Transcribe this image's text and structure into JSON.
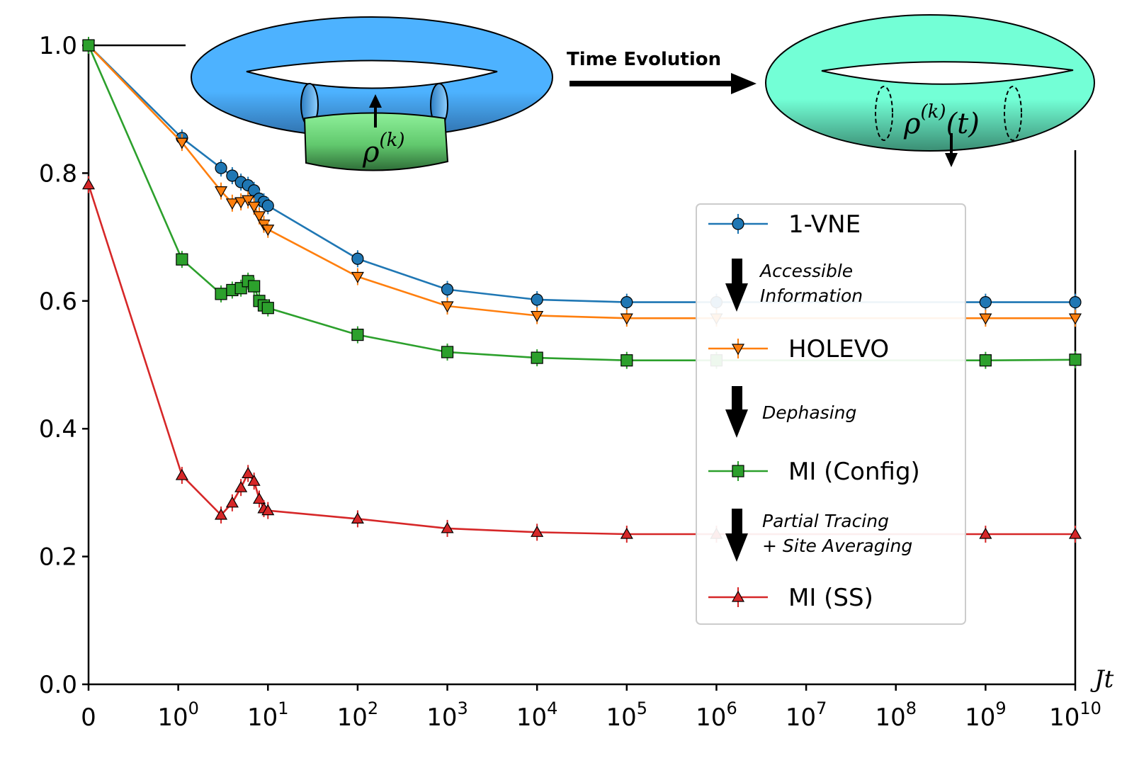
{
  "chart_data": {
    "type": "line",
    "xscale": "symlog",
    "xlim": [
      0,
      10000000000
    ],
    "ylim": [
      0,
      1.0
    ],
    "xlabel": "Jt",
    "ylabel": "",
    "grid": false,
    "legend_position": "center-right",
    "x_ticks": [
      {
        "value": 0,
        "base": "0",
        "exp": ""
      },
      {
        "value": 1,
        "base": "10",
        "exp": "0"
      },
      {
        "value": 10,
        "base": "10",
        "exp": "1"
      },
      {
        "value": 100,
        "base": "10",
        "exp": "2"
      },
      {
        "value": 1000,
        "base": "10",
        "exp": "3"
      },
      {
        "value": 10000,
        "base": "10",
        "exp": "4"
      },
      {
        "value": 100000,
        "base": "10",
        "exp": "5"
      },
      {
        "value": 1000000,
        "base": "10",
        "exp": "6"
      },
      {
        "value": 10000000,
        "base": "10",
        "exp": "7"
      },
      {
        "value": 100000000,
        "base": "10",
        "exp": "8"
      },
      {
        "value": 1000000000,
        "base": "10",
        "exp": "9"
      },
      {
        "value": 10000000000,
        "base": "10",
        "exp": "10"
      }
    ],
    "y_ticks": [
      {
        "value": 0.0,
        "label": "0.0"
      },
      {
        "value": 0.2,
        "label": "0.2"
      },
      {
        "value": 0.4,
        "label": "0.4"
      },
      {
        "value": 0.6,
        "label": "0.6"
      },
      {
        "value": 0.8,
        "label": "0.8"
      },
      {
        "value": 1.0,
        "label": "1.0"
      }
    ],
    "series": [
      {
        "name": "1-VNE",
        "color": "#1f77b4",
        "marker": "circle",
        "x": [
          0,
          1.1,
          3,
          4,
          5,
          6,
          7,
          8,
          9,
          10,
          100,
          1000,
          10000,
          100000,
          1000000,
          1000000000,
          10000000000
        ],
        "y": [
          1.0,
          0.855,
          0.808,
          0.796,
          0.786,
          0.781,
          0.773,
          0.76,
          0.755,
          0.749,
          0.666,
          0.618,
          0.602,
          0.598,
          0.598,
          0.598,
          0.598
        ]
      },
      {
        "name": "HOLEVO",
        "color": "#ff7f0e",
        "marker": "triangle-down",
        "x": [
          0,
          1.1,
          3,
          4,
          5,
          6,
          7,
          8,
          9,
          10,
          100,
          1000,
          10000,
          100000,
          1000000,
          1000000000,
          10000000000
        ],
        "y": [
          1.0,
          0.848,
          0.772,
          0.753,
          0.755,
          0.758,
          0.748,
          0.733,
          0.72,
          0.712,
          0.638,
          0.592,
          0.577,
          0.573,
          0.573,
          0.573,
          0.573
        ]
      },
      {
        "name": "MI (Config)",
        "color": "#2ca02c",
        "marker": "square",
        "x": [
          0,
          1.1,
          3,
          4,
          5,
          6,
          7,
          8,
          9,
          10,
          100,
          1000,
          10000,
          100000,
          1000000,
          1000000000,
          10000000000
        ],
        "y": [
          1.0,
          0.665,
          0.611,
          0.617,
          0.62,
          0.631,
          0.623,
          0.6,
          0.593,
          0.589,
          0.547,
          0.52,
          0.511,
          0.507,
          0.507,
          0.507,
          0.508
        ]
      },
      {
        "name": "MI (SS)",
        "color": "#d62728",
        "marker": "triangle-up",
        "x": [
          0,
          1.1,
          3,
          4,
          5,
          6,
          7,
          8,
          9,
          10,
          100,
          1000,
          10000,
          100000,
          1000000,
          1000000000,
          10000000000
        ],
        "y": [
          0.782,
          0.327,
          0.265,
          0.284,
          0.308,
          0.33,
          0.318,
          0.29,
          0.275,
          0.272,
          0.259,
          0.244,
          0.238,
          0.235,
          0.235,
          0.235,
          0.235
        ]
      }
    ],
    "legend_notes": [
      {
        "lines": [
          "Accessible",
          "Information"
        ]
      },
      {
        "lines": [
          "Dephasing"
        ]
      },
      {
        "lines": [
          "Partial Tracing",
          "+ Site Averaging"
        ]
      }
    ],
    "inset": {
      "arrow_label": "Time Evolution",
      "left_label": {
        "symbol": "ρ",
        "superscript": "(k)",
        "suffix": ""
      },
      "right_label": {
        "symbol": "ρ",
        "superscript": "(k)",
        "suffix": "(t)"
      },
      "left_torus_color": "#4db2ff",
      "left_segment_color": "#6fd97c",
      "right_torus_color": "#73ffd6"
    }
  }
}
